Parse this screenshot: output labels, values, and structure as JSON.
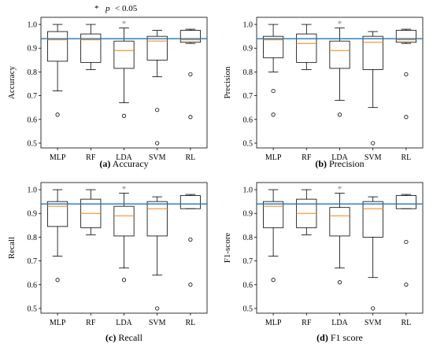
{
  "note": {
    "star": "*",
    "p": "p",
    "text": "< 0.05"
  },
  "chart_data": [
    {
      "type": "box",
      "caption_letter": "(a)",
      "caption_text": "Accuracy",
      "ylabel": "Accuracy",
      "categories": [
        "MLP",
        "RF",
        "LDA",
        "SVM",
        "RL"
      ],
      "ylim": [
        0.48,
        1.03
      ],
      "yticks": [
        "0.5",
        "0.6",
        "0.7",
        "0.8",
        "0.9",
        "1.0"
      ],
      "reference_line": 0.94,
      "significance": [
        {
          "category": "LDA",
          "marker": "*"
        }
      ],
      "boxes": [
        {
          "min": 0.72,
          "q1": 0.845,
          "median": 0.935,
          "q3": 0.97,
          "max": 1.0,
          "outliers": [
            0.62
          ]
        },
        {
          "min": 0.81,
          "q1": 0.84,
          "median": 0.935,
          "q3": 0.96,
          "max": 1.0,
          "outliers": []
        },
        {
          "min": 0.67,
          "q1": 0.815,
          "median": 0.89,
          "q3": 0.93,
          "max": 0.985,
          "outliers": [
            0.615
          ]
        },
        {
          "min": 0.78,
          "q1": 0.85,
          "median": 0.93,
          "q3": 0.95,
          "max": 0.975,
          "outliers": [
            0.64,
            0.5
          ]
        },
        {
          "min": 0.92,
          "q1": 0.925,
          "median": 0.935,
          "q3": 0.975,
          "max": 0.98,
          "outliers": [
            0.79,
            0.61
          ]
        }
      ]
    },
    {
      "type": "box",
      "caption_letter": "(b)",
      "caption_text": "Precision",
      "ylabel": "Precision",
      "categories": [
        "MLP",
        "RF",
        "LDA",
        "SVM",
        "RL"
      ],
      "ylim": [
        0.48,
        1.03
      ],
      "yticks": [
        "0.5",
        "0.6",
        "0.7",
        "0.8",
        "0.9",
        "1.0"
      ],
      "reference_line": 0.94,
      "significance": [
        {
          "category": "LDA",
          "marker": "*"
        }
      ],
      "boxes": [
        {
          "min": 0.8,
          "q1": 0.86,
          "median": 0.935,
          "q3": 0.95,
          "max": 1.0,
          "outliers": [
            0.72,
            0.62
          ]
        },
        {
          "min": 0.81,
          "q1": 0.84,
          "median": 0.92,
          "q3": 0.96,
          "max": 1.0,
          "outliers": []
        },
        {
          "min": 0.68,
          "q1": 0.815,
          "median": 0.89,
          "q3": 0.93,
          "max": 0.985,
          "outliers": [
            0.62
          ]
        },
        {
          "min": 0.65,
          "q1": 0.81,
          "median": 0.925,
          "q3": 0.95,
          "max": 0.97,
          "outliers": [
            0.5
          ]
        },
        {
          "min": 0.92,
          "q1": 0.925,
          "median": 0.935,
          "q3": 0.975,
          "max": 0.98,
          "outliers": [
            0.79,
            0.61
          ]
        }
      ]
    },
    {
      "type": "box",
      "caption_letter": "(c)",
      "caption_text": "Recall",
      "ylabel": "Recall",
      "categories": [
        "MLP",
        "RF",
        "LDA",
        "SVM",
        "RL"
      ],
      "ylim": [
        0.48,
        1.03
      ],
      "yticks": [
        "0.5",
        "0.6",
        "0.7",
        "0.8",
        "0.9",
        "1.0"
      ],
      "reference_line": 0.94,
      "significance": [
        {
          "category": "LDA",
          "marker": "*"
        }
      ],
      "boxes": [
        {
          "min": 0.72,
          "q1": 0.845,
          "median": 0.93,
          "q3": 0.95,
          "max": 1.0,
          "outliers": [
            0.62
          ]
        },
        {
          "min": 0.81,
          "q1": 0.84,
          "median": 0.9,
          "q3": 0.96,
          "max": 1.0,
          "outliers": []
        },
        {
          "min": 0.67,
          "q1": 0.805,
          "median": 0.89,
          "q3": 0.93,
          "max": 0.985,
          "outliers": [
            0.62
          ]
        },
        {
          "min": 0.64,
          "q1": 0.805,
          "median": 0.92,
          "q3": 0.95,
          "max": 0.97,
          "outliers": [
            0.5
          ]
        },
        {
          "min": 0.92,
          "q1": 0.92,
          "median": 0.94,
          "q3": 0.975,
          "max": 0.98,
          "outliers": [
            0.79,
            0.6
          ]
        }
      ]
    },
    {
      "type": "box",
      "caption_letter": "(d)",
      "caption_text": "F1 score",
      "ylabel": "F1-score",
      "categories": [
        "MLP",
        "RF",
        "LDA",
        "SVM",
        "RL"
      ],
      "ylim": [
        0.48,
        1.03
      ],
      "yticks": [
        "0.5",
        "0.6",
        "0.7",
        "0.8",
        "0.9",
        "1.0"
      ],
      "reference_line": 0.94,
      "significance": [
        {
          "category": "LDA",
          "marker": "*"
        }
      ],
      "boxes": [
        {
          "min": 0.72,
          "q1": 0.84,
          "median": 0.93,
          "q3": 0.95,
          "max": 1.0,
          "outliers": [
            0.62
          ]
        },
        {
          "min": 0.81,
          "q1": 0.84,
          "median": 0.9,
          "q3": 0.96,
          "max": 1.0,
          "outliers": []
        },
        {
          "min": 0.67,
          "q1": 0.805,
          "median": 0.89,
          "q3": 0.925,
          "max": 0.985,
          "outliers": [
            0.61
          ]
        },
        {
          "min": 0.63,
          "q1": 0.8,
          "median": 0.92,
          "q3": 0.95,
          "max": 0.97,
          "outliers": [
            0.5
          ]
        },
        {
          "min": 0.92,
          "q1": 0.92,
          "median": 0.94,
          "q3": 0.975,
          "max": 0.98,
          "outliers": [
            0.78,
            0.6
          ]
        }
      ]
    }
  ]
}
